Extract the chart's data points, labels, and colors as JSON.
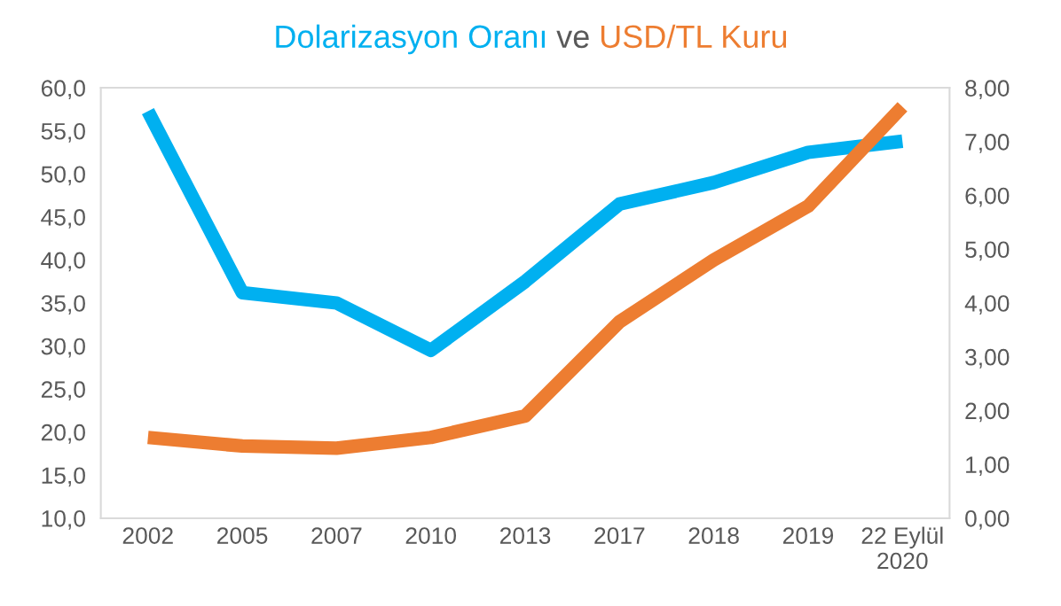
{
  "chart_data": {
    "type": "line",
    "annotations": [
      "ve"
    ],
    "categories": [
      "2002",
      "2005",
      "2007",
      "2010",
      "2013",
      "2017",
      "2018",
      "2019",
      "22 Eylül\n2020"
    ],
    "series": [
      {
        "name": "Dolarizasyon Oranı",
        "color": "#00b0f0",
        "values": [
          57.3,
          36.2,
          35.0,
          29.5,
          37.5,
          46.5,
          49.0,
          52.5,
          53.8
        ]
      },
      {
        "name": "USD/TL Kuru",
        "color": "#ed7d31",
        "axis": "y2",
        "values": [
          1.5,
          1.34,
          1.3,
          1.5,
          1.9,
          3.65,
          4.8,
          5.8,
          7.65
        ]
      }
    ],
    "ylim": [
      10,
      60
    ],
    "yticks": [
      {
        "value": 10,
        "label": "10,0"
      },
      {
        "value": 15,
        "label": "15,0"
      },
      {
        "value": 20,
        "label": "20,0"
      },
      {
        "value": 25,
        "label": "25,0"
      },
      {
        "value": 30,
        "label": "30,0"
      },
      {
        "value": 35,
        "label": "35,0"
      },
      {
        "value": 40,
        "label": "40,0"
      },
      {
        "value": 45,
        "label": "45,0"
      },
      {
        "value": 50,
        "label": "50,0"
      },
      {
        "value": 55,
        "label": "55,0"
      },
      {
        "value": 60,
        "label": "60,0"
      }
    ],
    "y2lim": [
      0,
      8
    ],
    "y2ticks": [
      {
        "value": 0,
        "label": "0,00"
      },
      {
        "value": 1,
        "label": "1,00"
      },
      {
        "value": 2,
        "label": "2,00"
      },
      {
        "value": 3,
        "label": "3,00"
      },
      {
        "value": 4,
        "label": "4,00"
      },
      {
        "value": 5,
        "label": "5,00"
      },
      {
        "value": 6,
        "label": "6,00"
      },
      {
        "value": 7,
        "label": "7,00"
      },
      {
        "value": 8,
        "label": "8,00"
      }
    ],
    "grid": false,
    "marker": "none",
    "line_style": "solid"
  }
}
